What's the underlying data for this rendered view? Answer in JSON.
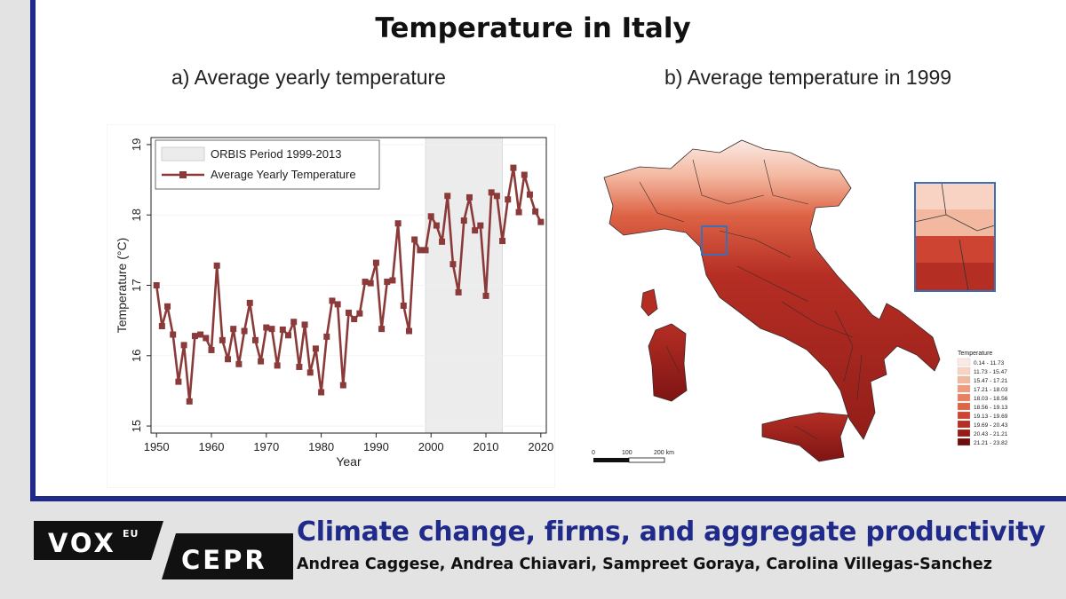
{
  "title": "Temperature in Italy",
  "chart_data": [
    {
      "type": "line",
      "panel_title": "a) Average yearly temperature",
      "xlabel": "Year",
      "ylabel": "Temperature (°C)",
      "xlim": [
        1949,
        2021
      ],
      "ylim": [
        14.9,
        19.1
      ],
      "xticks": [
        1950,
        1960,
        1970,
        1980,
        1990,
        2000,
        2010,
        2020
      ],
      "yticks": [
        15,
        16,
        17,
        18,
        19
      ],
      "shaded_period": {
        "label": "ORBIS Period 1999-2013",
        "start": 1999,
        "end": 2013
      },
      "legend_position": "top-left",
      "series": [
        {
          "name": "Average Yearly Temperature",
          "color": "#8b3a3a",
          "x": [
            1950,
            1951,
            1952,
            1953,
            1954,
            1955,
            1956,
            1957,
            1958,
            1959,
            1960,
            1961,
            1962,
            1963,
            1964,
            1965,
            1966,
            1967,
            1968,
            1969,
            1970,
            1971,
            1972,
            1973,
            1974,
            1975,
            1976,
            1977,
            1978,
            1979,
            1980,
            1981,
            1982,
            1983,
            1984,
            1985,
            1986,
            1987,
            1988,
            1989,
            1990,
            1991,
            1992,
            1993,
            1994,
            1995,
            1996,
            1997,
            1998,
            1999,
            2000,
            2001,
            2002,
            2003,
            2004,
            2005,
            2006,
            2007,
            2008,
            2009,
            2010,
            2011,
            2012,
            2013,
            2014,
            2015,
            2016,
            2017,
            2018,
            2019,
            2020
          ],
          "y": [
            17.0,
            16.42,
            16.7,
            16.3,
            15.63,
            16.15,
            15.35,
            16.28,
            16.3,
            16.25,
            16.08,
            17.28,
            16.22,
            15.95,
            16.38,
            15.88,
            16.35,
            16.75,
            16.22,
            15.92,
            16.4,
            16.38,
            15.86,
            16.37,
            16.29,
            16.48,
            15.84,
            16.44,
            15.76,
            16.1,
            15.48,
            16.27,
            16.78,
            16.73,
            15.58,
            16.61,
            16.52,
            16.6,
            17.05,
            17.03,
            17.32,
            16.38,
            17.05,
            17.07,
            17.88,
            16.71,
            16.35,
            17.65,
            17.5,
            17.5,
            17.98,
            17.85,
            17.62,
            18.27,
            17.3,
            16.9,
            17.92,
            18.25,
            17.78,
            17.85,
            16.85,
            18.32,
            18.27,
            17.63,
            18.22,
            18.67,
            18.04,
            18.57,
            18.29,
            18.05,
            17.9
          ]
        }
      ]
    },
    {
      "type": "heatmap",
      "panel_title": "b) Average temperature in 1999",
      "legend_title": "Temperature",
      "legend_position": "bottom-right",
      "legend": [
        {
          "label": "0.14 - 11.73",
          "color": "#fbe9e3"
        },
        {
          "label": "11.73 - 15.47",
          "color": "#f8d3c3"
        },
        {
          "label": "15.47 - 17.21",
          "color": "#f3b8a0"
        },
        {
          "label": "17.21 - 18.03",
          "color": "#ef9c7e"
        },
        {
          "label": "18.03 - 18.56",
          "color": "#e8805f"
        },
        {
          "label": "18.56 - 19.13",
          "color": "#de6446"
        },
        {
          "label": "19.13 - 19.69",
          "color": "#cd4532"
        },
        {
          "label": "19.69 - 20.43",
          "color": "#b52e24"
        },
        {
          "label": "20.43 - 21.21",
          "color": "#921d19"
        },
        {
          "label": "21.21 - 23.82",
          "color": "#6b0e0f"
        }
      ],
      "scale_labels": [
        "0",
        "100",
        "200 km"
      ]
    }
  ],
  "footer": {
    "logo_vox": "VOX",
    "logo_eu": "EU",
    "logo_cepr": "CEPR",
    "headline": "Climate change, firms, and aggregate productivity",
    "authors": "Andrea Caggese, Andrea Chiavari, Sampreet Goraya, Carolina Villegas-Sanchez"
  }
}
